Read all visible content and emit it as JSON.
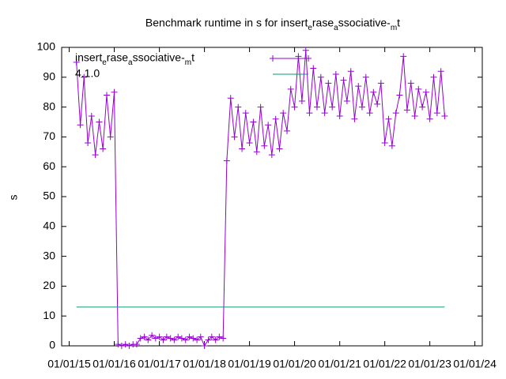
{
  "chart_data": {
    "type": "line",
    "title": "Benchmark runtime in s for insert_erase_associative-_mt",
    "ylabel": "s",
    "xlim": [
      "2014-11-01",
      "2024-03-01"
    ],
    "xticks": [
      {
        "value": "2015-01-01",
        "label": "01/01/15"
      },
      {
        "value": "2016-01-01",
        "label": "01/01/16"
      },
      {
        "value": "2017-01-01",
        "label": "01/01/17"
      },
      {
        "value": "2018-01-01",
        "label": "01/01/18"
      },
      {
        "value": "2019-01-01",
        "label": "01/01/19"
      },
      {
        "value": "2020-01-01",
        "label": "01/01/20"
      },
      {
        "value": "2021-01-01",
        "label": "01/01/21"
      },
      {
        "value": "2022-01-01",
        "label": "01/01/22"
      },
      {
        "value": "2023-01-01",
        "label": "01/01/23"
      },
      {
        "value": "2024-01-01",
        "label": "01/01/24"
      }
    ],
    "ylim": [
      0,
      100
    ],
    "yticks": [
      0,
      10,
      20,
      30,
      40,
      50,
      60,
      70,
      80,
      90,
      100
    ],
    "legend": "top-left",
    "series": [
      {
        "name": "insert_erase_associative-_mt",
        "color": "#9400d3",
        "markers": true,
        "x": [
          "2015-03-01",
          "2015-04-01",
          "2015-05-01",
          "2015-06-01",
          "2015-07-01",
          "2015-08-01",
          "2015-09-01",
          "2015-10-01",
          "2015-11-01",
          "2015-12-01",
          "2016-01-01",
          "2016-02-01",
          "2016-03-01",
          "2016-04-01",
          "2016-05-01",
          "2016-06-01",
          "2016-07-01",
          "2016-08-01",
          "2016-09-01",
          "2016-10-01",
          "2016-11-01",
          "2016-12-01",
          "2017-01-01",
          "2017-02-01",
          "2017-03-01",
          "2017-04-01",
          "2017-05-01",
          "2017-06-01",
          "2017-07-01",
          "2017-08-01",
          "2017-09-01",
          "2017-10-01",
          "2017-11-01",
          "2017-12-01",
          "2018-01-01",
          "2018-02-01",
          "2018-03-01",
          "2018-04-01",
          "2018-05-01",
          "2018-06-01",
          "2018-07-01",
          "2018-08-01",
          "2018-09-01",
          "2018-10-01",
          "2018-11-01",
          "2018-12-01",
          "2019-01-01",
          "2019-02-01",
          "2019-03-01",
          "2019-04-01",
          "2019-05-01",
          "2019-06-01",
          "2019-07-01",
          "2019-08-01",
          "2019-09-01",
          "2019-10-01",
          "2019-11-01",
          "2019-12-01",
          "2020-01-01",
          "2020-02-01",
          "2020-03-01",
          "2020-04-01",
          "2020-05-01",
          "2020-06-01",
          "2020-07-01",
          "2020-08-01",
          "2020-09-01",
          "2020-10-01",
          "2020-11-01",
          "2020-12-01",
          "2021-01-01",
          "2021-02-01",
          "2021-03-01",
          "2021-04-01",
          "2021-05-01",
          "2021-06-01",
          "2021-07-01",
          "2021-08-01",
          "2021-09-01",
          "2021-10-01",
          "2021-11-01",
          "2021-12-01",
          "2022-01-01",
          "2022-02-01",
          "2022-03-01",
          "2022-04-01",
          "2022-05-01",
          "2022-06-01",
          "2022-07-01",
          "2022-08-01",
          "2022-09-01",
          "2022-10-01",
          "2022-11-01",
          "2022-12-01",
          "2023-01-01",
          "2023-02-01",
          "2023-03-01",
          "2023-04-01",
          "2023-05-01"
        ],
        "values": [
          95,
          74,
          90,
          68,
          77,
          64,
          75,
          66,
          84,
          70,
          85,
          0.5,
          0,
          0.5,
          0,
          0.5,
          0.5,
          2.5,
          3,
          2,
          3.5,
          2.5,
          3,
          2,
          3,
          2.5,
          2,
          3,
          2.5,
          2,
          3,
          2.5,
          2,
          3,
          0,
          2,
          3,
          2,
          3,
          2.5,
          62,
          83,
          70,
          80,
          66,
          78,
          68,
          75,
          65,
          80,
          67,
          74,
          64,
          76,
          66,
          78,
          72,
          86,
          80,
          97,
          82,
          99,
          78,
          93,
          80,
          90,
          78,
          88,
          80,
          91,
          77,
          89,
          82,
          92,
          76,
          87,
          80,
          90,
          78,
          85,
          81,
          88,
          68,
          76,
          67,
          78,
          84,
          97,
          79,
          88,
          77,
          86,
          80,
          85,
          76,
          90,
          78,
          92,
          77
        ]
      },
      {
        "name": "4.1.0",
        "color": "#009e73",
        "markers": false,
        "x": [
          "2015-03-01",
          "2023-05-01"
        ],
        "values": [
          13,
          13
        ]
      }
    ]
  }
}
